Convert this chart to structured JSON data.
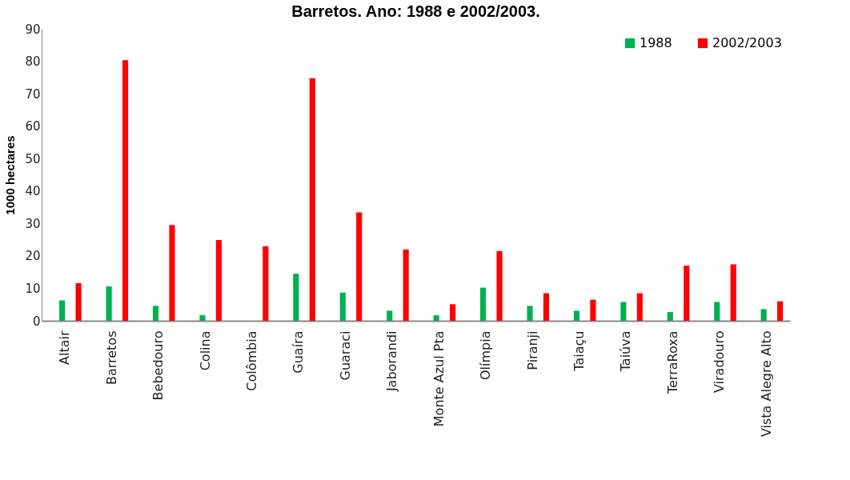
{
  "chart_data": {
    "type": "bar",
    "title": "Barretos. Ano: 1988 e 2002/2003.",
    "ylabel": "1000 hectares",
    "categories": [
      "Altair",
      "Barretos",
      "Bebedouro",
      "Colina",
      "Colômbia",
      "Guaíra",
      "Guaraci",
      "Jaborandi",
      "Monte Azul Pta",
      "Olímpia",
      "Piranji",
      "Taiaçu",
      "Taiúva",
      "TerraRoxa",
      "Viradouro",
      "Vista Alegre Alto"
    ],
    "series": [
      {
        "name": "1988",
        "color": "#00b050",
        "values": [
          6.3,
          10.6,
          4.6,
          1.7,
          0,
          14.5,
          8.7,
          3.1,
          1.7,
          10.2,
          4.6,
          3.1,
          5.8,
          2.7,
          5.8,
          3.6
        ]
      },
      {
        "name": "2002/2003",
        "color": "#ff0000",
        "values": [
          11.6,
          80.3,
          29.5,
          24.9,
          23.0,
          74.8,
          33.4,
          22.0,
          5.1,
          21.5,
          8.5,
          6.5,
          8.5,
          17.0,
          17.4,
          6.0
        ]
      }
    ],
    "ylim": [
      0,
      90
    ],
    "yticks": [
      0,
      10,
      20,
      30,
      40,
      50,
      60,
      70,
      80,
      90
    ],
    "grid": false,
    "legend": "top right"
  }
}
